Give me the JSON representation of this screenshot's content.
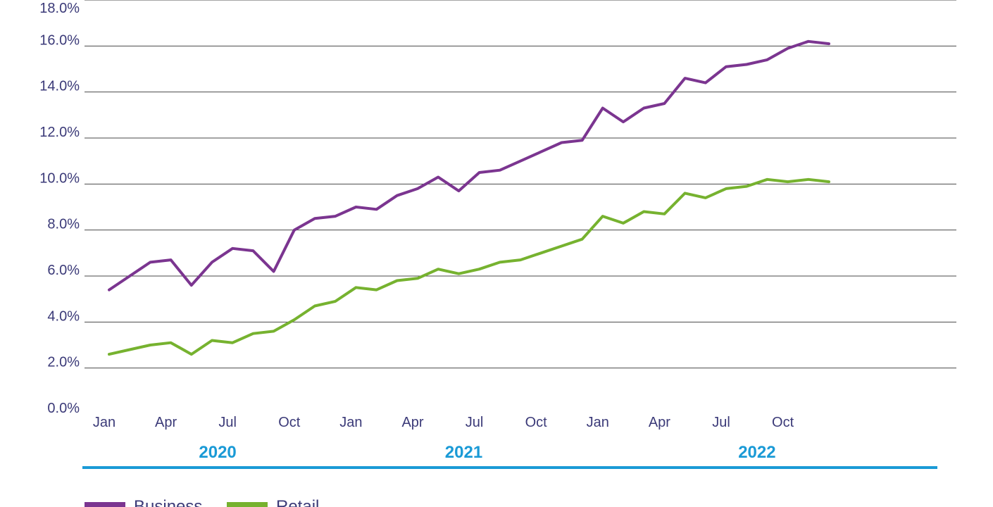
{
  "chart_data": {
    "type": "line",
    "title": "",
    "xlabel": "",
    "ylabel": "",
    "ylim": [
      0,
      18
    ],
    "y_ticks": [
      "0.0%",
      "2.0%",
      "4.0%",
      "6.0%",
      "8.0%",
      "10.0%",
      "12.0%",
      "14.0%",
      "16.0%",
      "18.0%"
    ],
    "grid": "horizontal",
    "x": [
      "2020-01",
      "2020-02",
      "2020-03",
      "2020-04",
      "2020-05",
      "2020-06",
      "2020-07",
      "2020-08",
      "2020-09",
      "2020-10",
      "2020-11",
      "2020-12",
      "2021-01",
      "2021-02",
      "2021-03",
      "2021-04",
      "2021-05",
      "2021-06",
      "2021-07",
      "2021-08",
      "2021-09",
      "2021-10",
      "2021-11",
      "2021-12",
      "2022-01",
      "2022-02",
      "2022-03",
      "2022-04",
      "2022-05",
      "2022-06",
      "2022-07",
      "2022-08",
      "2022-09",
      "2022-10",
      "2022-11",
      "2022-12"
    ],
    "x_tick_labels": [
      {
        "month": "2020-01",
        "label": "Jan"
      },
      {
        "month": "2020-04",
        "label": "Apr"
      },
      {
        "month": "2020-07",
        "label": "Jul"
      },
      {
        "month": "2020-10",
        "label": "Oct"
      },
      {
        "month": "2021-01",
        "label": "Jan"
      },
      {
        "month": "2021-04",
        "label": "Apr"
      },
      {
        "month": "2021-07",
        "label": "Jul"
      },
      {
        "month": "2021-10",
        "label": "Oct"
      },
      {
        "month": "2022-01",
        "label": "Jan"
      },
      {
        "month": "2022-04",
        "label": "Apr"
      },
      {
        "month": "2022-07",
        "label": "Jul"
      },
      {
        "month": "2022-10",
        "label": "Oct"
      }
    ],
    "year_groups": [
      {
        "label": "2020",
        "first": "2020-01",
        "last": "2020-12"
      },
      {
        "label": "2021",
        "first": "2021-01",
        "last": "2021-12"
      },
      {
        "label": "2022",
        "first": "2022-01",
        "last": "2022-12"
      }
    ],
    "series": [
      {
        "name": "Business",
        "color": "#7b3590",
        "values": [
          5.4,
          6.0,
          6.6,
          6.7,
          5.6,
          6.6,
          7.2,
          7.1,
          6.2,
          8.0,
          8.5,
          8.6,
          9.0,
          8.9,
          9.5,
          9.8,
          10.3,
          9.7,
          10.5,
          10.6,
          11.0,
          11.4,
          11.8,
          11.9,
          13.3,
          12.7,
          13.3,
          13.5,
          14.6,
          14.4,
          15.1,
          15.2,
          15.4,
          15.9,
          16.2,
          16.1
        ]
      },
      {
        "name": "Retail",
        "color": "#76b22f",
        "values": [
          2.6,
          2.8,
          3.0,
          3.1,
          2.6,
          3.2,
          3.1,
          3.5,
          3.6,
          4.1,
          4.7,
          4.9,
          5.5,
          5.4,
          5.8,
          5.9,
          6.3,
          6.1,
          6.3,
          6.6,
          6.7,
          7.0,
          7.3,
          7.6,
          8.6,
          8.3,
          8.8,
          8.7,
          9.6,
          9.4,
          9.8,
          9.9,
          10.2,
          10.1,
          10.2,
          10.1
        ]
      }
    ],
    "legend": {
      "position": "bottom-left"
    }
  }
}
